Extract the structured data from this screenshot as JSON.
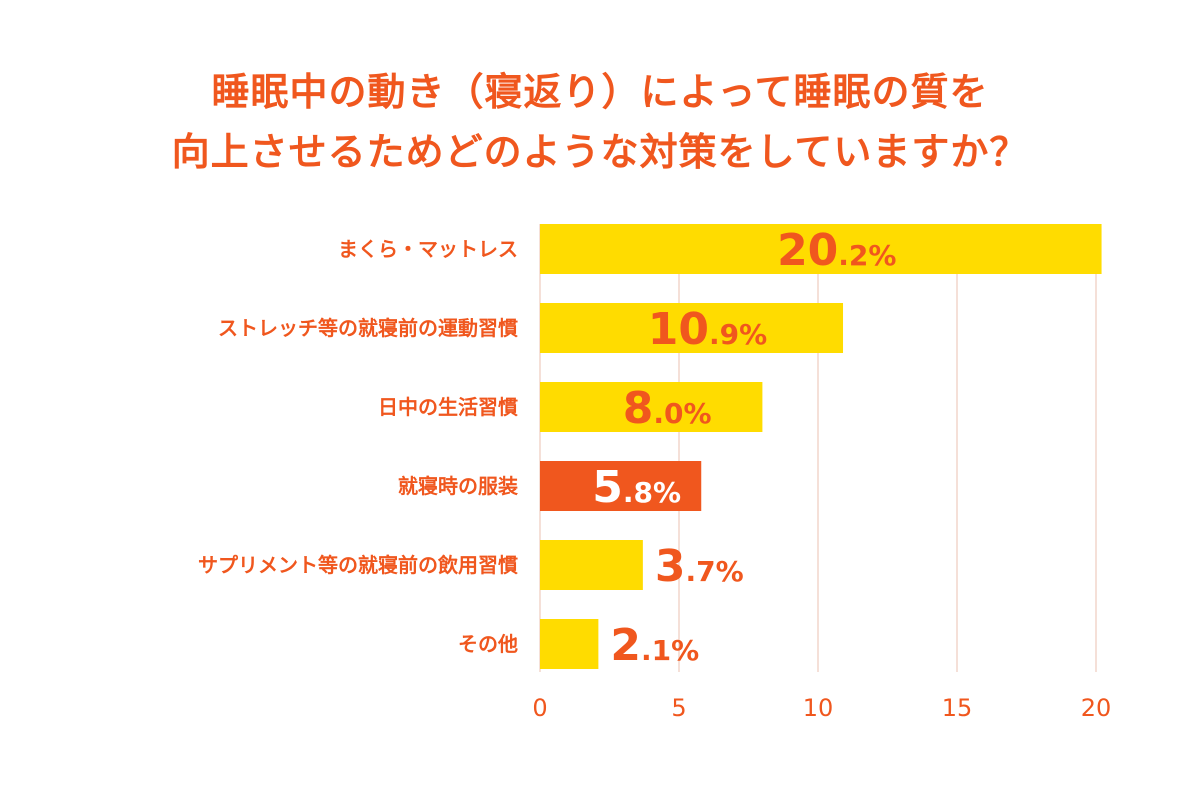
{
  "title": {
    "line1": "睡眠中の動き（寝返り）によって睡眠の質を",
    "line2": "向上させるためどのような対策をしていますか？"
  },
  "colors": {
    "bar": "#ffdc00",
    "highlight_bar": "#f0571e",
    "text": "#f0571e",
    "value_on_highlight": "#ffffff",
    "grid": "#f2d6cc"
  },
  "chart_data": {
    "type": "bar",
    "orientation": "horizontal",
    "categories": [
      "まくら・マットレス",
      "ストレッチ等の就寝前の運動習慣",
      "日中の生活習慣",
      "就寝時の服装",
      "サプリメント等の就寝前の飲用習慣",
      "その他"
    ],
    "values": [
      20.2,
      10.9,
      8.0,
      5.8,
      3.7,
      2.1
    ],
    "value_labels": [
      [
        "20",
        ".2%"
      ],
      [
        "10",
        ".9%"
      ],
      [
        "8",
        ".0%"
      ],
      [
        "5",
        ".8%"
      ],
      [
        "3",
        ".7%"
      ],
      [
        "2",
        ".1%"
      ]
    ],
    "highlight_index": 3,
    "xlim": [
      0,
      20
    ],
    "xticks": [
      "0",
      "5",
      "10",
      "15",
      "20"
    ],
    "grid": true
  }
}
